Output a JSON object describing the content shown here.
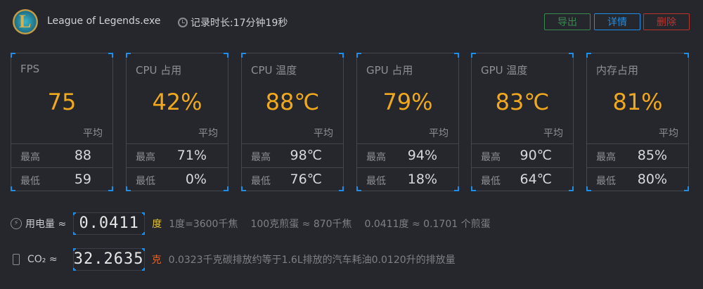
{
  "header": {
    "app_title": "League of Legends.exe",
    "duration": "记录时长:17分钟19秒",
    "logo_letter": "L"
  },
  "buttons": {
    "export": "导出",
    "details": "详情",
    "delete": "删除"
  },
  "colors": {
    "accent": "#f0a81e",
    "corner": "#1e8ee8",
    "export": "#3a8a4f",
    "details": "#1e8ee8",
    "delete": "#b8362f"
  },
  "avg_label": "平均",
  "max_label": "最高",
  "min_label": "最低",
  "cards": [
    {
      "name": "FPS",
      "avg": "75",
      "max": "88",
      "min": "59"
    },
    {
      "name": "CPU 占用",
      "avg": "42%",
      "max": "71%",
      "min": "0%"
    },
    {
      "name": "CPU 温度",
      "avg": "88℃",
      "max": "98℃",
      "min": "76℃"
    },
    {
      "name": "GPU 占用",
      "avg": "79%",
      "max": "94%",
      "min": "18%"
    },
    {
      "name": "GPU 温度",
      "avg": "83℃",
      "max": "90℃",
      "min": "64℃"
    },
    {
      "name": "内存占用",
      "avg": "81%",
      "max": "85%",
      "min": "80%"
    }
  ],
  "power": {
    "label": "用电量 ≈",
    "value": "0.0411",
    "unit": "度",
    "note1": "1度=3600千焦",
    "note2": "100克煎蛋 ≈ 870千焦",
    "note3": "0.0411度 ≈ 0.1701 个煎蛋"
  },
  "co2": {
    "label": "CO₂ ≈",
    "value": "32.2635",
    "unit": "克",
    "note": "0.0323千克碳排放约等于1.6L排放的汽车耗油0.0120升的排放量"
  }
}
